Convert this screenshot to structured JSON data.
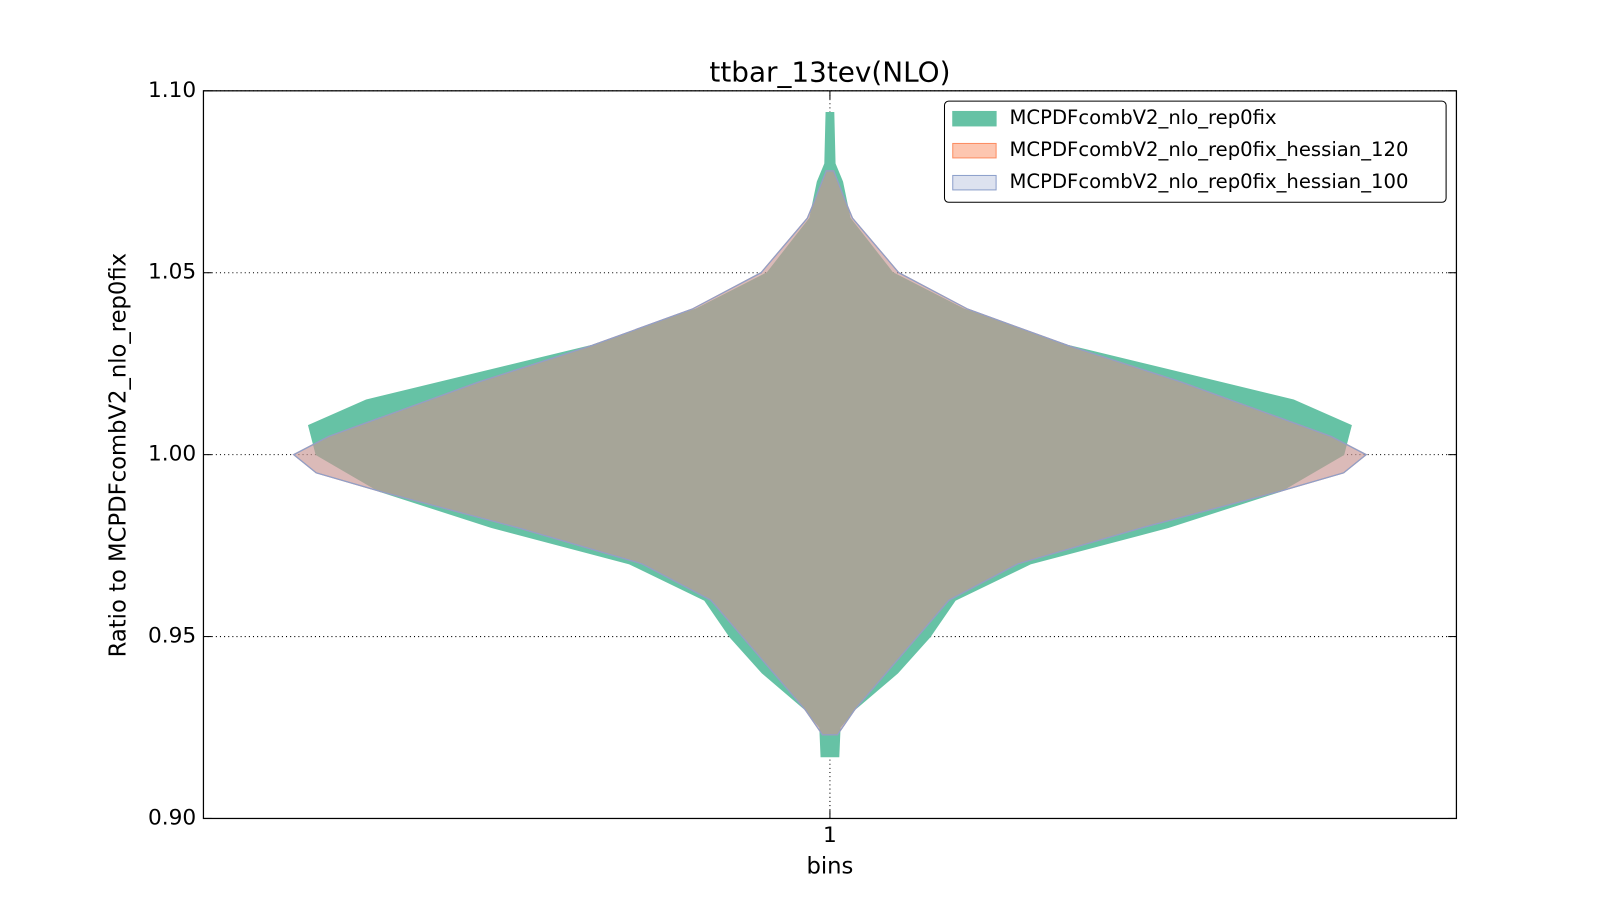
{
  "chart_data": {
    "type": "violin",
    "title": "ttbar_13tev(NLO)",
    "xlabel": "bins",
    "ylabel": "Ratio to MCPDFcombV2_nlo_rep0fix",
    "categories": [
      "1"
    ],
    "xlim": [
      0.5,
      1.5
    ],
    "ylim": [
      0.9,
      1.1
    ],
    "yticks": [
      {
        "value": 0.9,
        "label": "0.90"
      },
      {
        "value": 0.95,
        "label": "0.95"
      },
      {
        "value": 1.0,
        "label": "1.00"
      },
      {
        "value": 1.05,
        "label": "1.05"
      },
      {
        "value": 1.1,
        "label": "1.10"
      }
    ],
    "grid": true,
    "legend": "upper right",
    "series": [
      {
        "name": "MCPDFcombV2_nlo_rep0fix",
        "color": "#66c2a5",
        "opacity": 1,
        "y": [
          1.094,
          1.08,
          1.075,
          1.065,
          1.05,
          1.04,
          1.03,
          1.02,
          1.015,
          1.008,
          1.0,
          0.99,
          0.98,
          0.97,
          0.96,
          0.95,
          0.94,
          0.93,
          0.925,
          0.917
        ],
        "widths": [
          0.003,
          0.004,
          0.01,
          0.016,
          0.05,
          0.107,
          0.19,
          0.31,
          0.37,
          0.416,
          0.41,
          0.36,
          0.27,
          0.16,
          0.1,
          0.08,
          0.054,
          0.02,
          0.008,
          0.007
        ]
      },
      {
        "name": "MCPDFcombV2_nlo_rep0fix_hessian_120",
        "color": "#fc8d62",
        "opacity": 0.5,
        "y": [
          1.078,
          1.07,
          1.065,
          1.05,
          1.04,
          1.03,
          1.02,
          1.01,
          1.005,
          1.0,
          0.995,
          0.99,
          0.98,
          0.97,
          0.96,
          0.95,
          0.94,
          0.93,
          0.923
        ],
        "widths": [
          0.003,
          0.012,
          0.018,
          0.055,
          0.11,
          0.19,
          0.28,
          0.36,
          0.4,
          0.428,
          0.41,
          0.36,
          0.25,
          0.15,
          0.095,
          0.07,
          0.045,
          0.02,
          0.006
        ]
      },
      {
        "name": "MCPDFcombV2_nlo_rep0fix_hessian_100",
        "color": "#8da0cb",
        "opacity": 0.3,
        "y": [
          1.078,
          1.07,
          1.065,
          1.05,
          1.04,
          1.03,
          1.02,
          1.01,
          1.005,
          1.0,
          0.995,
          0.99,
          0.98,
          0.97,
          0.96,
          0.95,
          0.94,
          0.93,
          0.923
        ],
        "widths": [
          0.003,
          0.012,
          0.018,
          0.055,
          0.11,
          0.19,
          0.28,
          0.36,
          0.4,
          0.428,
          0.41,
          0.36,
          0.25,
          0.15,
          0.095,
          0.07,
          0.045,
          0.02,
          0.006
        ]
      }
    ]
  }
}
